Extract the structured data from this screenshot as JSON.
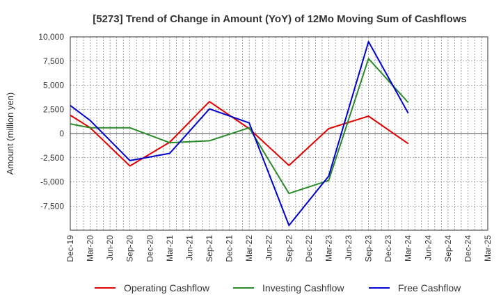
{
  "chart_data": {
    "type": "line",
    "title": "[5273]  Trend of Change in Amount (YoY) of 12Mo Moving Sum of Cashflows",
    "xlabel": "",
    "ylabel": "Amount (million yen)",
    "ylim": [
      -10000,
      10000
    ],
    "yticks": [
      10000,
      7500,
      5000,
      2500,
      0,
      -2500,
      -5000,
      -7500
    ],
    "ytick_labels": [
      "10,000",
      "7,500",
      "5,000",
      "2,500",
      "0",
      "-2,500",
      "-5,000",
      "-7,500"
    ],
    "categories": [
      "Dec-19",
      "Mar-20",
      "Jun-20",
      "Sep-20",
      "Dec-20",
      "Mar-21",
      "Jun-21",
      "Sep-21",
      "Dec-21",
      "Mar-22",
      "Jun-22",
      "Sep-22",
      "Dec-22",
      "Mar-23",
      "Jun-23",
      "Sep-23",
      "Dec-23",
      "Mar-24",
      "Jun-24",
      "Sep-24",
      "Dec-24",
      "Mar-25"
    ],
    "grid": true,
    "legend_position": "bottom",
    "series": [
      {
        "name": "Operating Cashflow",
        "color": "#e00000",
        "values": [
          1900,
          600,
          null,
          -3350,
          null,
          -900,
          null,
          3300,
          null,
          500,
          null,
          -3300,
          null,
          500,
          null,
          1800,
          null,
          -1050,
          null,
          null,
          null,
          null
        ]
      },
      {
        "name": "Investing Cashflow",
        "color": "#2a8a2a",
        "values": [
          1000,
          600,
          null,
          600,
          null,
          -950,
          null,
          -750,
          null,
          600,
          null,
          -6200,
          null,
          -4850,
          null,
          7750,
          null,
          3200,
          null,
          null,
          null,
          null
        ]
      },
      {
        "name": "Free Cashflow",
        "color": "#0000cc",
        "values": [
          2900,
          1350,
          null,
          -2800,
          null,
          -2050,
          null,
          2550,
          null,
          1100,
          null,
          -9500,
          null,
          -4400,
          null,
          9500,
          null,
          2100,
          null,
          null,
          null,
          null
        ]
      }
    ]
  }
}
